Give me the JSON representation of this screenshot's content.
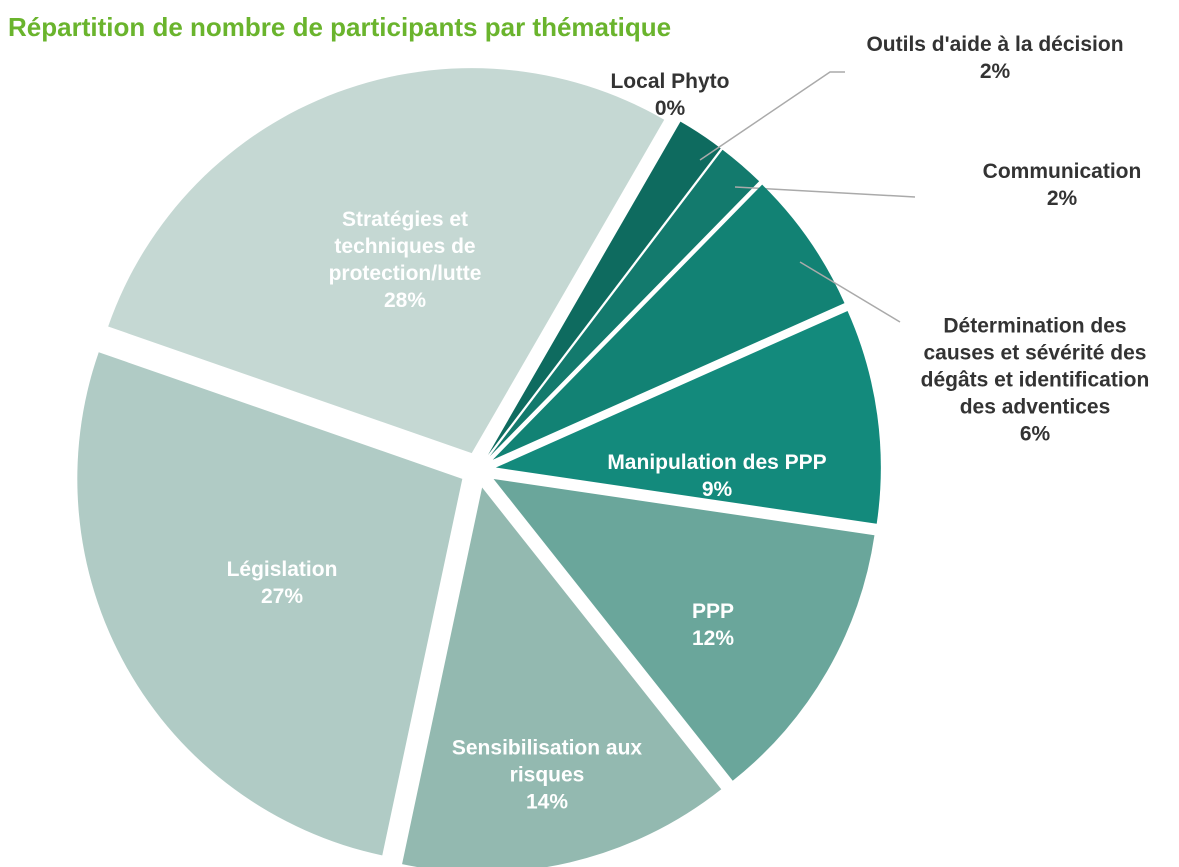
{
  "chart_data": {
    "type": "pie",
    "title": "Répartition de nombre de participants par thématique",
    "categories": [
      "Local Phyto",
      "Outils d'aide à la décision",
      "Communication",
      "Détermination des causes et sévérité des dégâts et identification des adventices",
      "Manipulation des PPP",
      "PPP",
      "Sensibilisation aux risques",
      "Législation",
      "Stratégies et techniques de protection/lutte"
    ],
    "values": [
      0,
      2,
      2,
      6,
      9,
      12,
      14,
      27,
      28
    ],
    "value_labels": [
      "0%",
      "2%",
      "2%",
      "6%",
      "9%",
      "12%",
      "14%",
      "27%",
      "28%"
    ],
    "colors": [
      "#0b5f55",
      "#0e6b5f",
      "#137a6d",
      "#128274",
      "#138a7c",
      "#6aa69b",
      "#93b9b0",
      "#b0cbc5",
      "#c5d8d3"
    ]
  }
}
